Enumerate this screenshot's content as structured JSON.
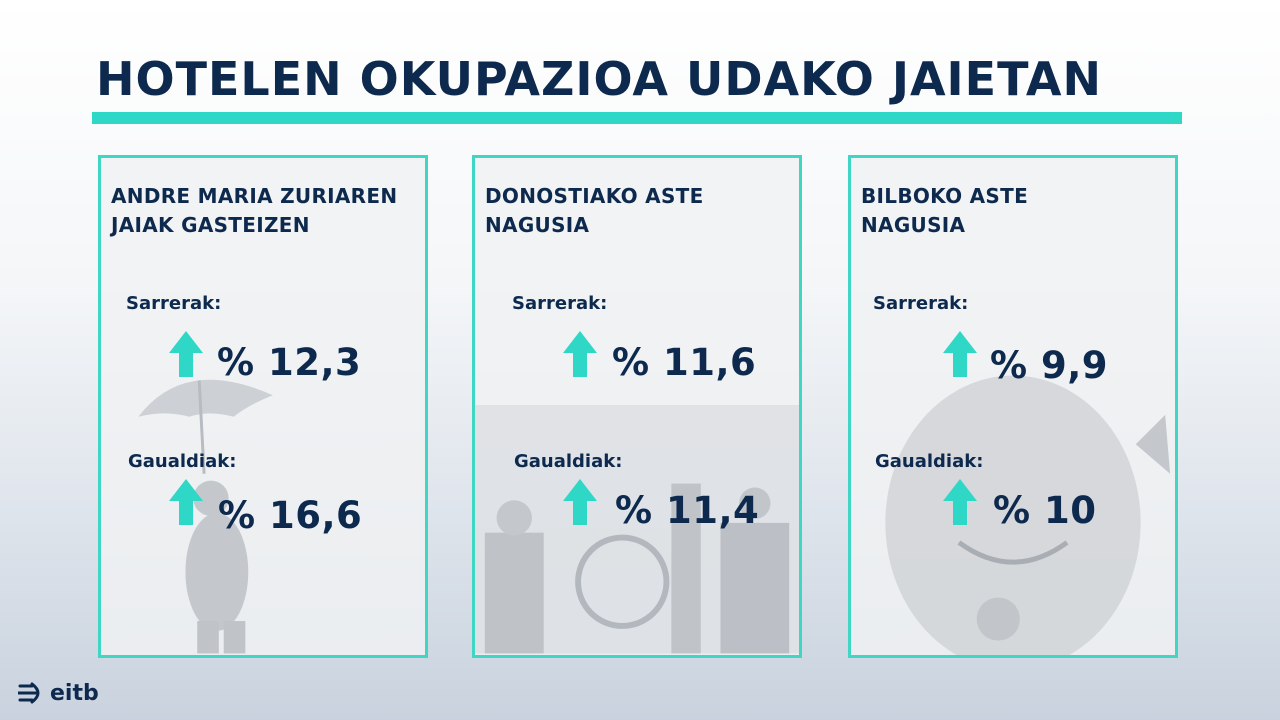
{
  "title": "HOTELEN OKUPAZIOA UDAKO JAIETAN",
  "cards": [
    {
      "title_line1": "ANDRE MARIA ZURIAREN",
      "title_line2": "JAIAK GASTEIZEN",
      "entries_label": "Sarrerak:",
      "entries_value": "% 12,3",
      "nights_label": "Gaualdiak:",
      "nights_value": "% 16,6"
    },
    {
      "title_line1": "DONOSTIAKO ASTE",
      "title_line2": "NAGUSIA",
      "entries_label": "Sarrerak:",
      "entries_value": "% 11,6",
      "nights_label": "Gaualdiak:",
      "nights_value": "% 11,4"
    },
    {
      "title_line1": "BILBOKO ASTE",
      "title_line2": "NAGUSIA",
      "entries_label": "Sarrerak:",
      "entries_value": "% 9,9",
      "nights_label": "Gaualdiak:",
      "nights_value": "% 10"
    }
  ],
  "logo": {
    "text": "eitb",
    "icon": "eitb-logo-icon"
  },
  "colors": {
    "navy": "#0d2a4e",
    "teal": "#2fd8c6"
  },
  "arrow_icon": "arrow-up-icon"
}
